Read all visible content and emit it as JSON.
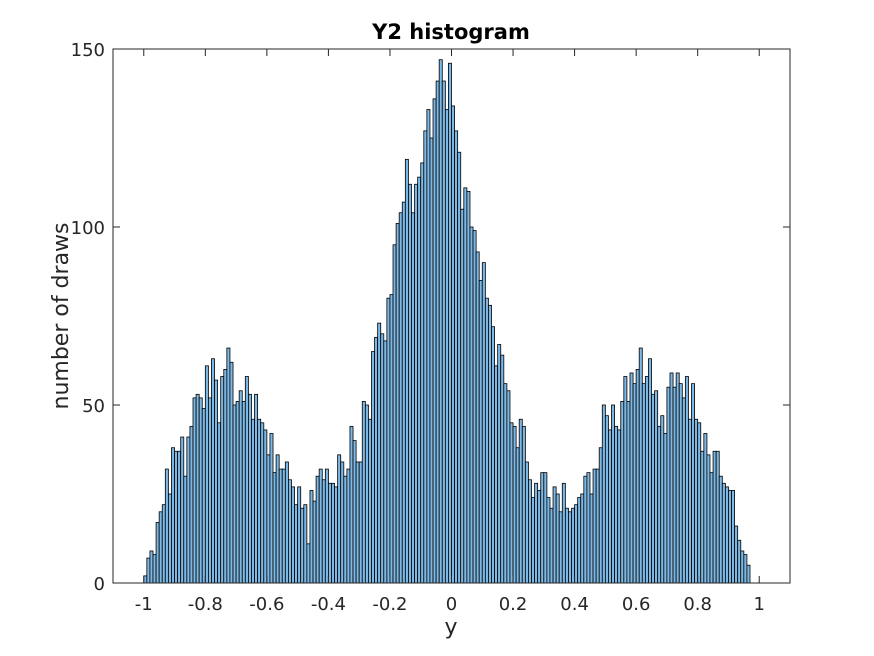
{
  "chart_data": {
    "type": "bar",
    "title": "Y2 histogram",
    "xlabel": "y",
    "ylabel": "number of draws",
    "xlim": [
      -1.1,
      1.1
    ],
    "ylim": [
      0,
      150
    ],
    "x_ticks": [
      -1,
      -0.8,
      -0.6,
      -0.4,
      -0.2,
      0,
      0.2,
      0.4,
      0.6,
      0.8,
      1
    ],
    "x_tick_labels": [
      "-1",
      "-0.8",
      "-0.6",
      "-0.4",
      "-0.2",
      "0",
      "0.2",
      "0.4",
      "0.6",
      "0.8",
      "1"
    ],
    "y_ticks": [
      0,
      50,
      100,
      150
    ],
    "y_tick_labels": [
      "0",
      "50",
      "100",
      "150"
    ],
    "grid": false,
    "bin_start": -1.0,
    "bin_width": 0.01,
    "bar_color": "#7eb9e5",
    "edge_color": "#000000",
    "values": [
      2,
      7,
      9,
      8,
      17,
      20,
      22,
      32,
      25,
      38,
      37,
      37,
      41,
      30,
      41,
      44,
      52,
      53,
      52,
      49,
      61,
      52,
      63,
      57,
      45,
      58,
      60,
      66,
      62,
      50,
      51,
      54,
      51,
      58,
      53,
      46,
      53,
      46,
      45,
      43,
      36,
      42,
      31,
      36,
      32,
      32,
      34,
      29,
      27,
      22,
      27,
      21,
      22,
      11,
      26,
      23,
      30,
      32,
      29,
      32,
      28,
      28,
      27,
      36,
      34,
      30,
      32,
      44,
      40,
      34,
      34,
      51,
      50,
      46,
      65,
      69,
      73,
      70,
      68,
      80,
      81,
      95,
      101,
      104,
      107,
      119,
      112,
      104,
      112,
      114,
      118,
      127,
      133,
      125,
      136,
      141,
      147,
      141,
      133,
      146,
      134,
      127,
      121,
      105,
      111,
      110,
      100,
      99,
      93,
      85,
      90,
      80,
      78,
      72,
      61,
      67,
      64,
      56,
      54,
      45,
      44,
      38,
      46,
      44,
      34,
      29,
      24,
      28,
      26,
      31,
      31,
      24,
      21,
      27,
      25,
      20,
      28,
      21,
      20,
      21,
      22,
      24,
      25,
      30,
      31,
      25,
      32,
      32,
      38,
      50,
      47,
      43,
      50,
      44,
      43,
      51,
      58,
      51,
      59,
      56,
      60,
      66,
      56,
      58,
      63,
      53,
      54,
      44,
      47,
      42,
      55,
      59,
      55,
      59,
      56,
      52,
      58,
      46,
      56,
      46,
      45,
      37,
      42,
      36,
      31,
      37,
      37,
      30,
      28,
      27,
      26,
      26,
      16,
      12,
      9,
      8,
      5
    ]
  },
  "colors": {
    "axes": "#262626",
    "background": "#ffffff"
  }
}
